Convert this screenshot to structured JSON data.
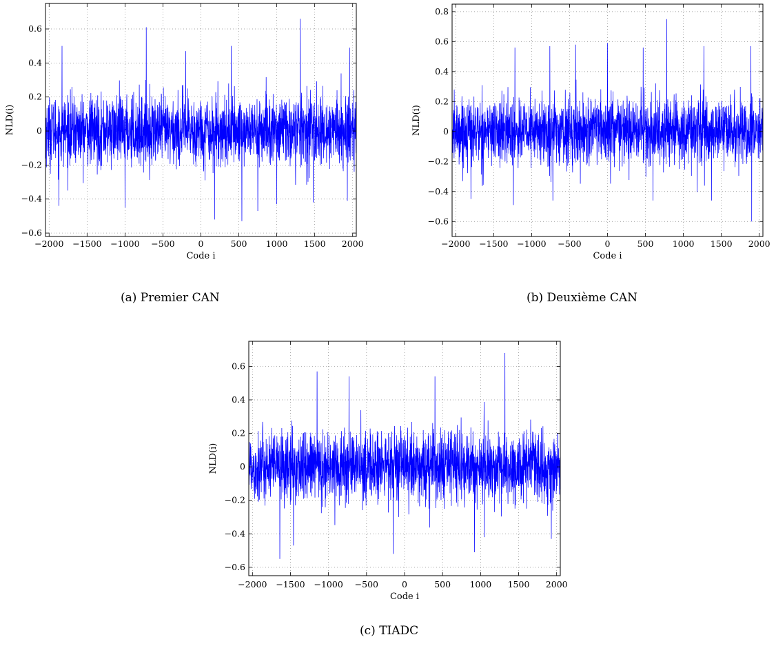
{
  "chart_data": [
    {
      "id": "a",
      "type": "line",
      "caption": "(a)  Premier CAN",
      "xlabel": "Code i",
      "ylabel": "NLD(i)",
      "xlim": [
        -2048,
        2048
      ],
      "ylim": [
        -0.62,
        0.75
      ],
      "xticks": [
        -2000,
        -1500,
        -1000,
        -500,
        0,
        500,
        1000,
        1500,
        2000
      ],
      "yticks": [
        -0.6,
        -0.4,
        -0.2,
        0,
        0.2,
        0.4,
        0.6
      ],
      "grid": true,
      "line_color": "#0000ff",
      "series": [
        {
          "noise_std": 0.1,
          "spikes": [
            [
              -1830,
              0.5
            ],
            [
              -720,
              0.61
            ],
            [
              -200,
              0.47
            ],
            [
              400,
              0.5
            ],
            [
              1310,
              0.66
            ],
            [
              1960,
              0.49
            ],
            [
              -1870,
              -0.44
            ],
            [
              -1000,
              -0.45
            ],
            [
              180,
              -0.52
            ],
            [
              540,
              -0.53
            ],
            [
              750,
              -0.47
            ],
            [
              1000,
              -0.43
            ],
            [
              1480,
              -0.42
            ],
            [
              1930,
              -0.41
            ]
          ]
        }
      ]
    },
    {
      "id": "b",
      "type": "line",
      "caption": "(b)  Deuxième CAN",
      "xlabel": "Code i",
      "ylabel": "NLD(i)",
      "xlim": [
        -2048,
        2048
      ],
      "ylim": [
        -0.7,
        0.85
      ],
      "xticks": [
        -2000,
        -1500,
        -1000,
        -500,
        0,
        500,
        1000,
        1500,
        2000
      ],
      "yticks": [
        -0.6,
        -0.4,
        -0.2,
        0,
        0.2,
        0.4,
        0.6,
        0.8
      ],
      "grid": true,
      "line_color": "#0000ff",
      "series": [
        {
          "noise_std": 0.11,
          "spikes": [
            [
              -1220,
              0.56
            ],
            [
              -760,
              0.57
            ],
            [
              -420,
              0.58
            ],
            [
              0,
              0.59
            ],
            [
              470,
              0.56
            ],
            [
              780,
              0.75
            ],
            [
              1270,
              0.57
            ],
            [
              1890,
              0.57
            ],
            [
              -1800,
              -0.45
            ],
            [
              -1240,
              -0.49
            ],
            [
              -720,
              -0.46
            ],
            [
              600,
              -0.46
            ],
            [
              1370,
              -0.46
            ],
            [
              1900,
              -0.6
            ]
          ]
        }
      ]
    },
    {
      "id": "c",
      "type": "line",
      "caption": "(c)  TIADC",
      "xlabel": "Code i",
      "ylabel": "NLD(i)",
      "xlim": [
        -2048,
        2048
      ],
      "ylim": [
        -0.65,
        0.75
      ],
      "xticks": [
        -2000,
        -1500,
        -1000,
        -500,
        0,
        500,
        1000,
        1500,
        2000
      ],
      "yticks": [
        -0.6,
        -0.4,
        -0.2,
        0,
        0.2,
        0.4,
        0.6
      ],
      "grid": true,
      "line_color": "#0000ff",
      "series": [
        {
          "noise_std": 0.105,
          "spikes": [
            [
              -1150,
              0.57
            ],
            [
              -730,
              0.54
            ],
            [
              400,
              0.54
            ],
            [
              1320,
              0.68
            ],
            [
              -1640,
              -0.55
            ],
            [
              -1460,
              -0.47
            ],
            [
              -150,
              -0.52
            ],
            [
              920,
              -0.51
            ],
            [
              1050,
              -0.42
            ],
            [
              1930,
              -0.43
            ]
          ]
        }
      ]
    }
  ]
}
